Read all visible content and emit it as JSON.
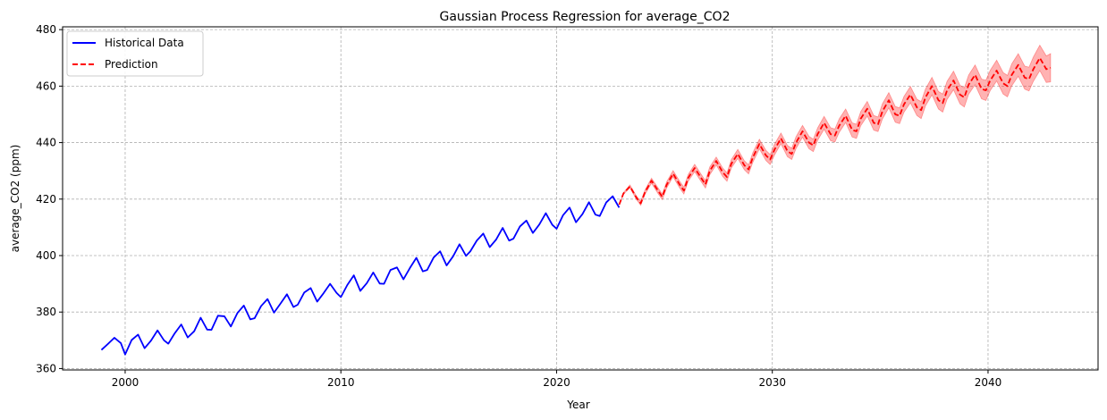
{
  "chart_data": {
    "type": "line",
    "title": "Gaussian Process Regression for average_CO2",
    "xlabel": "Year",
    "ylabel": "average_CO2 (ppm)",
    "xlim": [
      1997.1,
      2045.1
    ],
    "ylim": [
      359.5,
      481.0
    ],
    "x_ticks": [
      2000,
      2010,
      2020,
      2030,
      2040
    ],
    "y_ticks": [
      360,
      380,
      400,
      420,
      440,
      460,
      480
    ],
    "x_tick_labels": [
      "2000",
      "2010",
      "2020",
      "2030",
      "2040"
    ],
    "y_tick_labels": [
      "360",
      "380",
      "400",
      "420",
      "440",
      "460",
      "480"
    ],
    "grid": true,
    "legend_position": "top-left",
    "series": [
      {
        "name": "Historical Data",
        "style": "solid",
        "color": "#0000ff",
        "x": [
          1998.9,
          1999.2,
          1999.5,
          1999.8,
          2000.0,
          2000.3,
          2000.6,
          2000.9,
          2001.2,
          2001.5,
          2001.8,
          2002.0,
          2002.3,
          2002.6,
          2002.9,
          2003.2,
          2003.5,
          2003.8,
          2004.0,
          2004.3,
          2004.6,
          2004.9,
          2005.2,
          2005.5,
          2005.8,
          2006.0,
          2006.3,
          2006.6,
          2006.9,
          2007.2,
          2007.5,
          2007.8,
          2008.0,
          2008.3,
          2008.6,
          2008.9,
          2009.2,
          2009.5,
          2009.8,
          2010.0,
          2010.3,
          2010.6,
          2010.9,
          2011.2,
          2011.5,
          2011.8,
          2012.0,
          2012.3,
          2012.6,
          2012.9,
          2013.2,
          2013.5,
          2013.8,
          2014.0,
          2014.3,
          2014.6,
          2014.9,
          2015.2,
          2015.5,
          2015.8,
          2016.0,
          2016.3,
          2016.6,
          2016.9,
          2017.2,
          2017.5,
          2017.8,
          2018.0,
          2018.3,
          2018.6,
          2018.9,
          2019.2,
          2019.5,
          2019.8,
          2020.0,
          2020.3,
          2020.6,
          2020.9,
          2021.2,
          2021.5,
          2021.8,
          2022.0,
          2022.3,
          2022.6,
          2022.9
        ],
        "y": [
          366.6,
          368.7,
          370.9,
          369.0,
          365.0,
          370.1,
          372.0,
          367.2,
          369.9,
          373.5,
          370.0,
          368.8,
          372.5,
          375.6,
          371.0,
          373.2,
          378.0,
          373.8,
          373.7,
          378.7,
          378.5,
          374.9,
          379.6,
          382.3,
          377.4,
          377.8,
          382.1,
          384.6,
          379.8,
          383.0,
          386.3,
          381.8,
          382.6,
          386.9,
          388.5,
          383.7,
          386.7,
          390.0,
          386.8,
          385.3,
          389.6,
          393.0,
          387.5,
          390.2,
          394.0,
          390.1,
          390.0,
          394.9,
          395.8,
          391.6,
          395.6,
          399.2,
          394.4,
          394.9,
          399.3,
          401.5,
          396.5,
          399.7,
          404.0,
          399.9,
          401.5,
          405.3,
          407.8,
          403.0,
          405.7,
          409.8,
          405.3,
          406.0,
          410.3,
          412.4,
          408.0,
          411.0,
          415.0,
          410.9,
          409.5,
          414.3,
          417.0,
          411.8,
          414.7,
          418.9,
          414.5,
          414.0,
          418.8,
          421.0,
          417.0
        ]
      },
      {
        "name": "Prediction",
        "style": "dashed",
        "color": "#ff0000",
        "x": [
          2022.9,
          2023.1,
          2023.4,
          2023.7,
          2023.9,
          2024.1,
          2024.4,
          2024.7,
          2024.9,
          2025.1,
          2025.4,
          2025.7,
          2025.9,
          2026.1,
          2026.4,
          2026.7,
          2026.9,
          2027.1,
          2027.4,
          2027.7,
          2027.9,
          2028.1,
          2028.4,
          2028.7,
          2028.9,
          2029.1,
          2029.4,
          2029.7,
          2029.9,
          2030.1,
          2030.4,
          2030.7,
          2030.9,
          2031.1,
          2031.4,
          2031.7,
          2031.9,
          2032.1,
          2032.4,
          2032.7,
          2032.9,
          2033.1,
          2033.4,
          2033.7,
          2033.9,
          2034.1,
          2034.4,
          2034.7,
          2034.9,
          2035.1,
          2035.4,
          2035.7,
          2035.9,
          2036.1,
          2036.4,
          2036.7,
          2036.9,
          2037.1,
          2037.4,
          2037.7,
          2037.9,
          2038.1,
          2038.4,
          2038.7,
          2038.9,
          2039.1,
          2039.4,
          2039.7,
          2039.9,
          2040.1,
          2040.4,
          2040.7,
          2040.9,
          2041.1,
          2041.4,
          2041.7,
          2041.9,
          2042.1,
          2042.4,
          2042.7,
          2042.9
        ],
        "y": [
          418.0,
          422.0,
          424.5,
          420.5,
          418.5,
          422.5,
          426.5,
          423.0,
          420.8,
          425.0,
          429.0,
          425.2,
          423.0,
          427.5,
          431.0,
          427.5,
          425.2,
          430.0,
          433.5,
          429.5,
          427.8,
          432.5,
          436.0,
          432.0,
          430.5,
          434.8,
          439.5,
          435.5,
          434.0,
          437.5,
          441.5,
          437.0,
          436.0,
          440.0,
          444.0,
          440.0,
          439.0,
          443.0,
          447.0,
          443.0,
          442.5,
          446.0,
          449.5,
          444.5,
          444.0,
          448.5,
          452.0,
          447.0,
          446.5,
          451.0,
          455.0,
          450.0,
          449.5,
          453.5,
          457.0,
          452.5,
          451.5,
          456.0,
          460.0,
          455.0,
          454.0,
          458.5,
          462.0,
          457.0,
          456.0,
          460.5,
          464.0,
          459.0,
          458.5,
          462.0,
          465.5,
          461.0,
          460.0,
          464.0,
          467.5,
          463.0,
          462.5,
          466.0,
          470.0,
          466.0,
          466.5
        ],
        "band_halfwidth": [
          0.0,
          0.3,
          0.5,
          0.6,
          0.7,
          0.8,
          0.9,
          1.0,
          1.0,
          1.1,
          1.1,
          1.2,
          1.2,
          1.2,
          1.3,
          1.3,
          1.3,
          1.4,
          1.4,
          1.5,
          1.5,
          1.5,
          1.6,
          1.6,
          1.6,
          1.7,
          1.7,
          1.8,
          1.8,
          1.9,
          1.9,
          2.0,
          2.0,
          2.1,
          2.1,
          2.2,
          2.2,
          2.2,
          2.3,
          2.3,
          2.3,
          2.4,
          2.4,
          2.5,
          2.5,
          2.5,
          2.6,
          2.6,
          2.6,
          2.7,
          2.7,
          2.8,
          2.8,
          2.8,
          2.9,
          2.9,
          3.0,
          3.0,
          3.1,
          3.1,
          3.2,
          3.2,
          3.3,
          3.3,
          3.4,
          3.4,
          3.5,
          3.5,
          3.6,
          3.6,
          3.7,
          3.8,
          3.8,
          3.9,
          4.0,
          4.1,
          4.2,
          4.3,
          4.5,
          4.7,
          5.0
        ]
      }
    ]
  }
}
